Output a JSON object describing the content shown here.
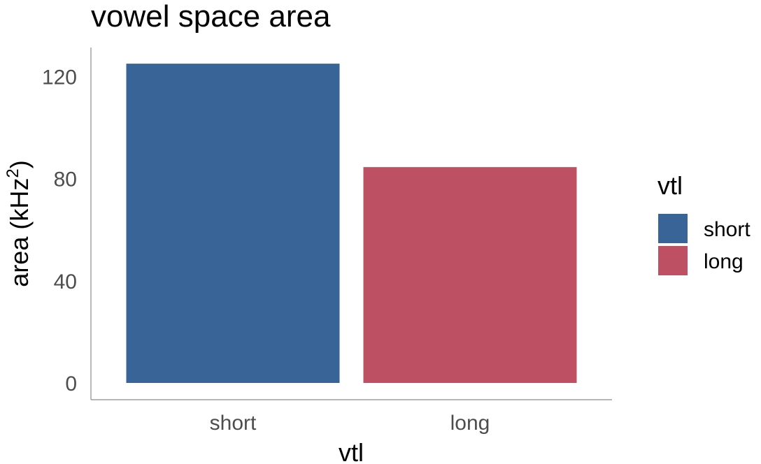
{
  "chart_data": {
    "type": "bar",
    "title": "vowel space area",
    "xlabel": "vtl",
    "ylabel": "area (kHz",
    "ylabel_superscript": "2",
    "ylabel_close": ")",
    "categories": [
      "short",
      "long"
    ],
    "values": [
      125,
      84.5
    ],
    "colors": [
      "#386498",
      "#be5064"
    ],
    "ylim": [
      0,
      131
    ],
    "yticks": [
      0,
      40,
      80,
      120
    ],
    "grid": false,
    "legend": {
      "title": "vtl",
      "position": "right",
      "entries": [
        "short",
        "long"
      ]
    }
  }
}
